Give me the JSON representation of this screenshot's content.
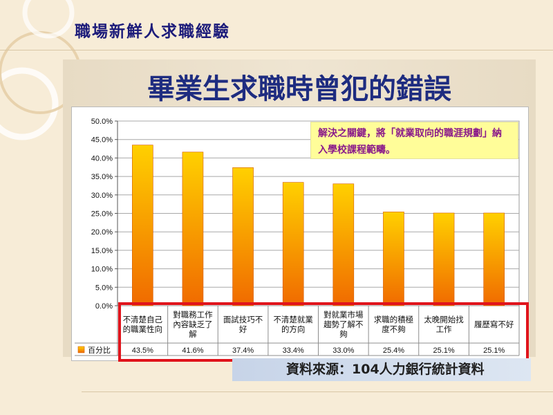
{
  "slide": {
    "title": "職場新鮮人求職經驗",
    "source": "資料來源：104人力銀行統計資料",
    "note": "解決之關鍵，將「就業取向的職涯規劃」納入學校課程範疇。"
  },
  "colors": {
    "bar_top": "#ffd000",
    "bar_bottom": "#f06a00",
    "highlight_border": "#e0141c",
    "title_color": "#1c1b7a"
  },
  "chart_data": {
    "type": "bar",
    "title": "畢業生求職時曾犯的錯誤",
    "categories": [
      [
        "不清楚自己",
        "的職業性向"
      ],
      [
        "對職務工作",
        "內容缺乏了",
        "解"
      ],
      [
        "面試技巧不",
        "好"
      ],
      [
        "不清楚就業",
        "的方向"
      ],
      [
        "對就業市場",
        "趨勢了解不",
        "夠"
      ],
      [
        "求職的積極",
        "度不夠"
      ],
      [
        "太晚開始找",
        "工作"
      ],
      [
        "履歷寫不好"
      ]
    ],
    "series": [
      {
        "name": "百分比",
        "values": [
          43.5,
          41.6,
          37.4,
          33.4,
          33.0,
          25.4,
          25.1,
          25.1
        ],
        "labels": [
          "43.5%",
          "41.6%",
          "37.4%",
          "33.4%",
          "33.0%",
          "25.4%",
          "25.1%",
          "25.1%"
        ]
      }
    ],
    "y_ticks": [
      "0.0%",
      "5.0%",
      "10.0%",
      "15.0%",
      "20.0%",
      "25.0%",
      "30.0%",
      "35.0%",
      "40.0%",
      "45.0%",
      "50.0%"
    ],
    "ylim": [
      0,
      50
    ],
    "grid": true,
    "legend": "data-table"
  }
}
